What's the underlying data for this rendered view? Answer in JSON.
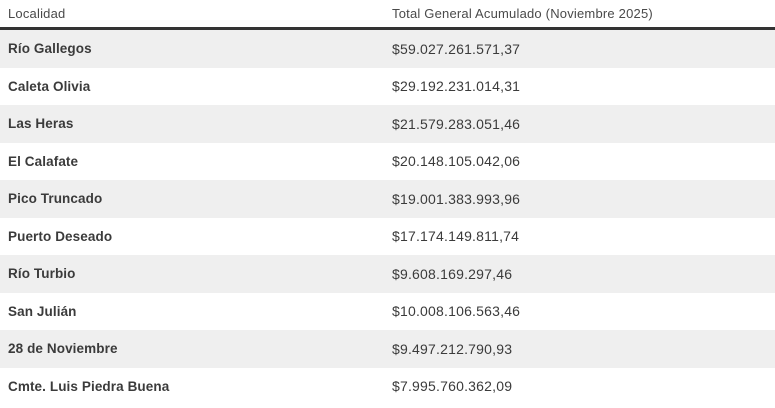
{
  "chart_data": {
    "type": "table",
    "title": "",
    "columns": [
      "Localidad",
      "Total General Acumulado (Noviembre 2025)"
    ],
    "rows": [
      {
        "localidad": "Río Gallegos",
        "total": "$59.027.261.571,37"
      },
      {
        "localidad": "Caleta Olivia",
        "total": "$29.192.231.014,31"
      },
      {
        "localidad": "Las Heras",
        "total": "$21.579.283.051,46"
      },
      {
        "localidad": "El Calafate",
        "total": "$20.148.105.042,06"
      },
      {
        "localidad": "Pico Truncado",
        "total": "$19.001.383.993,96"
      },
      {
        "localidad": "Puerto Deseado",
        "total": "$17.174.149.811,74"
      },
      {
        "localidad": "Río Turbio",
        "total": "$9.608.169.297,46"
      },
      {
        "localidad": "San Julián",
        "total": "$10.008.106.563,46"
      },
      {
        "localidad": "28 de Noviembre",
        "total": "$9.497.212.790,93"
      },
      {
        "localidad": "Cmte. Luis Piedra Buena",
        "total": "$7.995.760.362,09"
      }
    ],
    "layout": {
      "zebra_striping": true,
      "header_rule": true
    }
  },
  "header": {
    "col_localidad": "Localidad",
    "col_total": "Total General Acumulado (Noviembre 2025)"
  },
  "colors": {
    "row_alt_bg": "#efefef",
    "header_rule": "#333333",
    "header_text": "#4a4a4a",
    "body_text": "#3b3b3b",
    "background": "#ffffff"
  }
}
